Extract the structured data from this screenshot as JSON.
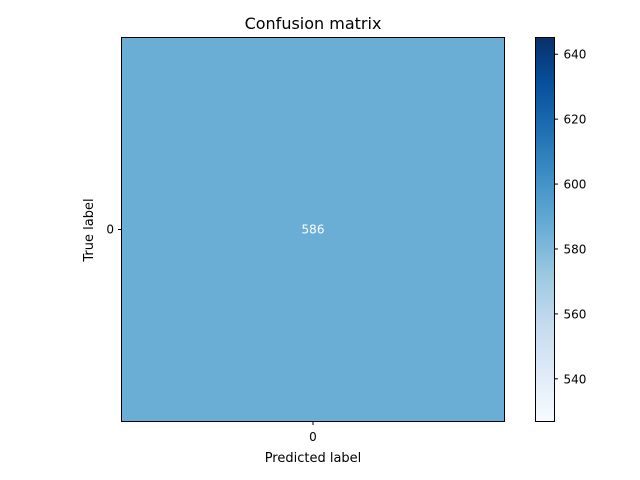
{
  "chart_data": {
    "type": "heatmap",
    "title": "Confusion matrix",
    "xlabel": "Predicted label",
    "ylabel": "True label",
    "x_categories": [
      "0"
    ],
    "y_categories": [
      "0"
    ],
    "values": [
      [
        586
      ]
    ],
    "cell_labels": [
      [
        "586"
      ]
    ],
    "colormap": "Blues",
    "cell_color": "#6aaed6",
    "cell_label_color": "#ffffff",
    "colorbar": {
      "range": [
        527,
        645
      ],
      "ticks": [
        540,
        560,
        580,
        600,
        620,
        640
      ],
      "tick_labels": [
        "540",
        "560",
        "580",
        "600",
        "620",
        "640"
      ]
    },
    "grid": false
  }
}
